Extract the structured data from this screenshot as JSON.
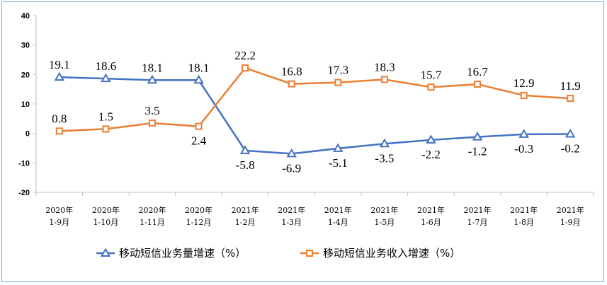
{
  "chart_data": {
    "type": "line",
    "categories": [
      [
        "2020年",
        "1-9月"
      ],
      [
        "2020年",
        "1-10月"
      ],
      [
        "2020年",
        "1-11月"
      ],
      [
        "2020年",
        "1-12月"
      ],
      [
        "2021年",
        "1-2月"
      ],
      [
        "2021年",
        "1-3月"
      ],
      [
        "2021年",
        "1-4月"
      ],
      [
        "2021年",
        "1-5月"
      ],
      [
        "2021年",
        "1-6月"
      ],
      [
        "2021年",
        "1-7月"
      ],
      [
        "2021年",
        "1-8月"
      ],
      [
        "2021年",
        "1-9月"
      ]
    ],
    "series": [
      {
        "name": "移动短信业务量增速（%）",
        "values": [
          19.1,
          18.6,
          18.1,
          18.1,
          -5.8,
          -6.9,
          -5.1,
          -3.5,
          -2.2,
          -1.2,
          -0.3,
          -0.2
        ],
        "labels": [
          "19.1",
          "18.6",
          "18.1",
          "18.1",
          "-5.8",
          "-6.9",
          "-5.1",
          "-3.5",
          "-2.2",
          "-1.2",
          "-0.3",
          "-0.2"
        ],
        "color": "#4472c4",
        "marker": "triangle"
      },
      {
        "name": "移动短信业务收入增速（%）",
        "values": [
          0.8,
          1.5,
          3.5,
          2.4,
          22.2,
          16.8,
          17.3,
          18.3,
          15.7,
          16.7,
          12.9,
          11.9
        ],
        "labels": [
          "0.8",
          "1.5",
          "3.5",
          "2.4",
          "22.2",
          "16.8",
          "17.3",
          "18.3",
          "15.7",
          "16.7",
          "12.9",
          "11.9"
        ],
        "color": "#ed7d31",
        "marker": "square"
      }
    ],
    "yticks": [
      "40",
      "30",
      "20",
      "10",
      "0",
      "-10",
      "-20"
    ],
    "ylim": [
      -20,
      40
    ],
    "grid": false,
    "legend": "bottom"
  }
}
